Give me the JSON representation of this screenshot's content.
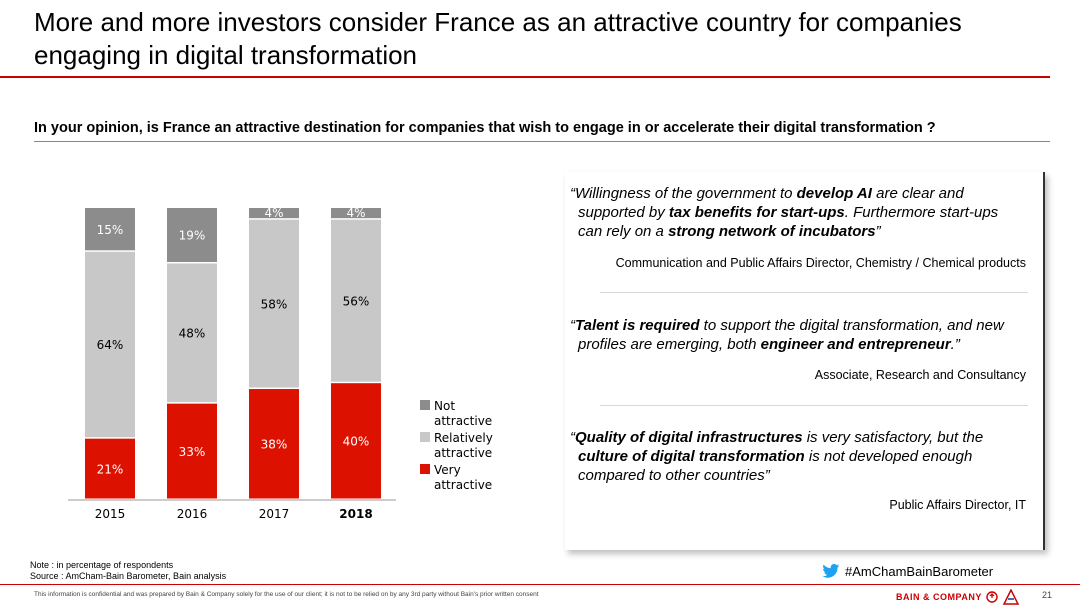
{
  "slide": {
    "title_line1": "More and more investors consider France as an attractive country for companies",
    "title_line2": "engaging in digital transformation",
    "question": "In your opinion, is France an attractive destination for companies that wish to engage in or accelerate their digital transformation ?",
    "note": "Note : in percentage of respondents",
    "source": "Source : AmCham-Bain Barometer, Bain analysis",
    "hashtag": "#AmChamBainBarometer",
    "disclaimer": "This information is confidential and was prepared by Bain & Company solely for the use of our client; it is not to be relied on by any 3rd party without Bain's prior written consent",
    "brand": "BAIN & COMPANY",
    "page_number": "21",
    "icons": {
      "hashtag": "twitter-bird-icon",
      "brand": "bain-logo-icon",
      "amcham": "amcham-logo-icon"
    }
  },
  "quotes": [
    {
      "lines": [
        [
          {
            "t": "“Willingness of the government to "
          },
          {
            "t": "develop AI",
            "b": true
          },
          {
            "t": " are clear and"
          }
        ],
        [
          {
            "t": "supported by "
          },
          {
            "t": "tax benefits for start-ups",
            "b": true
          },
          {
            "t": ". Furthermore start-ups"
          }
        ],
        [
          {
            "t": "can rely on a "
          },
          {
            "t": "strong network of incubators",
            "b": true
          },
          {
            "t": "”"
          }
        ]
      ],
      "author": "Communication and Public Affairs Director, Chemistry / Chemical products"
    },
    {
      "lines": [
        [
          {
            "t": "“"
          },
          {
            "t": "Talent is required",
            "b": true
          },
          {
            "t": " to support the digital transformation, and new"
          }
        ],
        [
          {
            "t": "profiles are emerging, both "
          },
          {
            "t": "engineer and entrepreneur",
            "b": true
          },
          {
            "t": ".”"
          }
        ]
      ],
      "author": "Associate, Research and Consultancy"
    },
    {
      "lines": [
        [
          {
            "t": "“"
          },
          {
            "t": "Quality of digital infrastructures",
            "b": true
          },
          {
            "t": " is very satisfactory, but the"
          }
        ],
        [
          {
            "t": "culture of digital transformation",
            "b": true
          },
          {
            "t": " is not developed enough"
          }
        ],
        [
          {
            "t": "compared to other countries”"
          }
        ]
      ],
      "author": "Public Affairs Director, IT"
    }
  ],
  "chart_data": {
    "type": "bar",
    "stacked": true,
    "categories": [
      "2015",
      "2016",
      "2017",
      "2018"
    ],
    "bold_category": "2018",
    "series": [
      {
        "name": "Very attractive",
        "values": [
          21,
          33,
          38,
          40
        ],
        "color": "#dd1100",
        "label_color": "#ffffff"
      },
      {
        "name": "Relatively attractive",
        "values": [
          64,
          48,
          58,
          56
        ],
        "color": "#c8c8c8",
        "label_color": "#000000"
      },
      {
        "name": "Not attractive",
        "values": [
          15,
          19,
          4,
          4
        ],
        "color": "#8c8c8c",
        "label_color": "#ffffff"
      }
    ],
    "value_suffix": "%",
    "ylim": [
      0,
      100
    ],
    "legend_position": "right",
    "grid": false
  }
}
